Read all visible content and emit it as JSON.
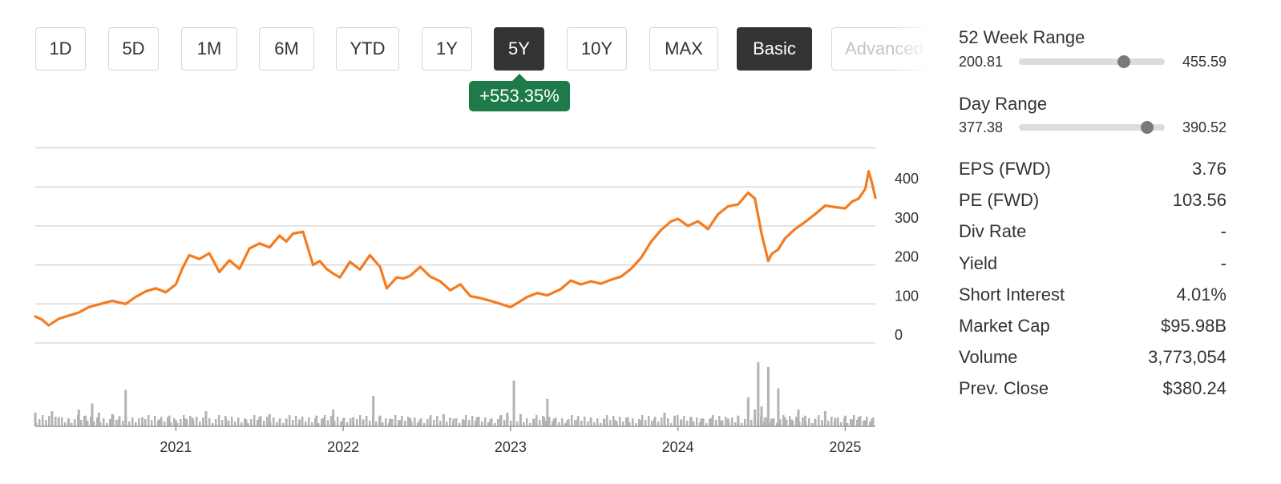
{
  "range_buttons": [
    {
      "label": "1D",
      "active": false
    },
    {
      "label": "5D",
      "active": false
    },
    {
      "label": "1M",
      "active": false
    },
    {
      "label": "6M",
      "active": false
    },
    {
      "label": "YTD",
      "active": false
    },
    {
      "label": "1Y",
      "active": false
    },
    {
      "label": "5Y",
      "active": true
    },
    {
      "label": "10Y",
      "active": false
    },
    {
      "label": "MAX",
      "active": false
    },
    {
      "label": "Basic",
      "active": true
    },
    {
      "label": "Advanced",
      "active": false
    }
  ],
  "change_badge": "+553.35%",
  "colors": {
    "line": "#f47c20",
    "volume": "#b3b3b3",
    "badge": "#1f7a4a",
    "grid": "#d9d9d9"
  },
  "stats": {
    "week52": {
      "title": "52 Week Range",
      "low": "200.81",
      "high": "455.59",
      "position": 0.72
    },
    "day": {
      "title": "Day Range",
      "low": "377.38",
      "high": "390.52",
      "position": 0.88
    },
    "rows": [
      {
        "label": "EPS (FWD)",
        "value": "3.76"
      },
      {
        "label": "PE (FWD)",
        "value": "103.56"
      },
      {
        "label": "Div Rate",
        "value": "-"
      },
      {
        "label": "Yield",
        "value": "-"
      },
      {
        "label": "Short Interest",
        "value": "4.01%"
      },
      {
        "label": "Market Cap",
        "value": "$95.98B"
      },
      {
        "label": "Volume",
        "value": "3,773,054"
      },
      {
        "label": "Prev. Close",
        "value": "$380.24"
      }
    ]
  },
  "chart_data": {
    "type": "line",
    "title": "",
    "xlabel": "",
    "ylabel": "",
    "ylim": [
      0,
      500
    ],
    "y_ticks": [
      0,
      100,
      200,
      300,
      400
    ],
    "y_axis_position": "right",
    "grid": true,
    "x_ticks": [
      "2021",
      "2022",
      "2023",
      "2024",
      "2025"
    ],
    "xlim": [
      2020.16,
      2025.18
    ],
    "series": [
      {
        "x": [
          2020.16,
          2020.2,
          2020.24,
          2020.3,
          2020.36,
          2020.42,
          2020.48,
          2020.55,
          2020.62,
          2020.7,
          2020.76,
          2020.82,
          2020.88,
          2020.94,
          2021.0,
          2021.04,
          2021.08,
          2021.14,
          2021.2,
          2021.26,
          2021.32,
          2021.38,
          2021.44,
          2021.5,
          2021.56,
          2021.62,
          2021.66,
          2021.7,
          2021.76,
          2021.82,
          2021.86,
          2021.9,
          2021.94,
          2021.98,
          2022.04,
          2022.1,
          2022.16,
          2022.22,
          2022.26,
          2022.32,
          2022.36,
          2022.4,
          2022.46,
          2022.52,
          2022.58,
          2022.64,
          2022.7,
          2022.76,
          2022.82,
          2022.88,
          2022.94,
          2023.0,
          2023.04,
          2023.1,
          2023.16,
          2023.22,
          2023.3,
          2023.36,
          2023.42,
          2023.48,
          2023.54,
          2023.6,
          2023.66,
          2023.72,
          2023.78,
          2023.84,
          2023.9,
          2023.96,
          2024.0,
          2024.06,
          2024.12,
          2024.18,
          2024.24,
          2024.3,
          2024.36,
          2024.42,
          2024.46,
          2024.5,
          2024.54,
          2024.56,
          2024.6,
          2024.64,
          2024.7,
          2024.76,
          2024.82,
          2024.88,
          2024.94,
          2025.0,
          2025.04,
          2025.08,
          2025.12,
          2025.14,
          2025.16,
          2025.18
        ],
        "values": [
          68,
          60,
          45,
          62,
          70,
          78,
          92,
          100,
          108,
          100,
          118,
          132,
          140,
          130,
          150,
          192,
          225,
          215,
          230,
          182,
          212,
          190,
          242,
          255,
          245,
          275,
          260,
          280,
          285,
          200,
          210,
          190,
          178,
          168,
          208,
          188,
          225,
          195,
          140,
          168,
          165,
          172,
          195,
          170,
          158,
          135,
          150,
          120,
          115,
          108,
          100,
          92,
          102,
          118,
          128,
          122,
          138,
          160,
          150,
          158,
          152,
          162,
          170,
          190,
          218,
          260,
          290,
          312,
          318,
          300,
          312,
          292,
          330,
          350,
          355,
          385,
          370,
          280,
          210,
          228,
          240,
          268,
          292,
          310,
          330,
          352,
          348,
          345,
          362,
          370,
          395,
          440,
          410,
          372
        ]
      }
    ],
    "volume": {
      "ylim": [
        0,
        100
      ],
      "x": [
        2020.16,
        2020.26,
        2020.3,
        2020.36,
        2020.42,
        2020.46,
        2020.5,
        2020.54,
        2020.62,
        2020.66,
        2020.7,
        2020.8,
        2020.9,
        2020.96,
        2021.0,
        2021.06,
        2021.1,
        2021.18,
        2021.3,
        2021.42,
        2021.5,
        2021.56,
        2021.62,
        2021.66,
        2021.74,
        2021.84,
        2021.88,
        2021.94,
        2022.0,
        2022.06,
        2022.12,
        2022.18,
        2022.22,
        2022.28,
        2022.34,
        2022.4,
        2022.46,
        2022.52,
        2022.6,
        2022.66,
        2022.72,
        2022.8,
        2022.88,
        2022.94,
        2022.98,
        2023.02,
        2023.06,
        2023.14,
        2023.2,
        2023.22,
        2023.26,
        2023.34,
        2023.4,
        2023.48,
        2023.56,
        2023.62,
        2023.7,
        2023.78,
        2023.86,
        2023.92,
        2023.98,
        2024.02,
        2024.08,
        2024.14,
        2024.2,
        2024.26,
        2024.3,
        2024.36,
        2024.42,
        2024.46,
        2024.48,
        2024.5,
        2024.52,
        2024.54,
        2024.56,
        2024.6,
        2024.64,
        2024.68,
        2024.72,
        2024.76,
        2024.82,
        2024.88,
        2024.94,
        2025.0,
        2025.04,
        2025.08,
        2025.12,
        2025.16
      ],
      "values": [
        18,
        20,
        12,
        10,
        22,
        14,
        30,
        18,
        16,
        10,
        48,
        12,
        9,
        14,
        8,
        10,
        11,
        20,
        10,
        9,
        12,
        16,
        8,
        10,
        9,
        14,
        11,
        22,
        10,
        12,
        9,
        40,
        14,
        10,
        8,
        11,
        9,
        12,
        16,
        10,
        8,
        12,
        9,
        14,
        18,
        60,
        16,
        10,
        12,
        36,
        10,
        8,
        9,
        11,
        10,
        9,
        12,
        8,
        10,
        18,
        14,
        9,
        12,
        10,
        11,
        8,
        10,
        14,
        38,
        22,
        84,
        26,
        12,
        78,
        10,
        50,
        12,
        9,
        22,
        14,
        10,
        20,
        11,
        14,
        9,
        12,
        8,
        10
      ]
    }
  }
}
